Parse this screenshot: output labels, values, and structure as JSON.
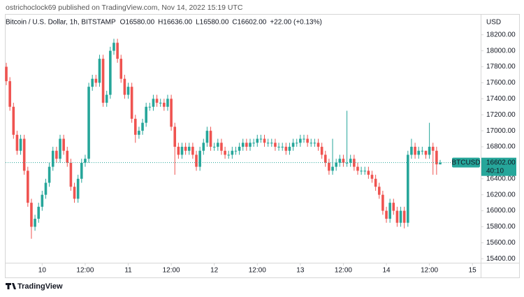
{
  "header": {
    "byline": "ostrichoclock69 published on TradingView.com, Nov 14, 2022 15:19 UTC",
    "brand": "TradingView"
  },
  "chart_data": {
    "type": "candlestick",
    "title": "Bitcoin / U.S. Dollar, 1h, BITSTAMP",
    "ohlc_legend": [
      {
        "label": "O",
        "value": "16580.00"
      },
      {
        "label": "H",
        "value": "16636.00"
      },
      {
        "label": "L",
        "value": "16580.00"
      },
      {
        "label": "C",
        "value": "16602.00"
      }
    ],
    "change": "+22.00 (+0.13%)",
    "currency": "USD",
    "symbol_tag": "BTCUSD",
    "price_label": "16602.00",
    "countdown": "40:10",
    "up_color": "#26a69a",
    "down_color": "#ef5350",
    "xlim": [
      -10.2,
      122.3
    ],
    "ylim": [
      15350,
      18460
    ],
    "xticks": [
      {
        "value": 0,
        "label": "10"
      },
      {
        "value": 12,
        "label": "12:00"
      },
      {
        "value": 24,
        "label": "11"
      },
      {
        "value": 36,
        "label": "12:00"
      },
      {
        "value": 48,
        "label": "12"
      },
      {
        "value": 60,
        "label": "12:00"
      },
      {
        "value": 72,
        "label": "13"
      },
      {
        "value": 84,
        "label": "12:00"
      },
      {
        "value": 96,
        "label": "14"
      },
      {
        "value": 108,
        "label": "12:00"
      },
      {
        "value": 120,
        "label": "15"
      }
    ],
    "yticks": [
      {
        "value": 18200,
        "label": "18200.00"
      },
      {
        "value": 18000,
        "label": "18000.00"
      },
      {
        "value": 17800,
        "label": "17800.00"
      },
      {
        "value": 17600,
        "label": "17600.00"
      },
      {
        "value": 17400,
        "label": "17400.00"
      },
      {
        "value": 17200,
        "label": "17200.00"
      },
      {
        "value": 17000,
        "label": "17000.00"
      },
      {
        "value": 16800,
        "label": "16800.00"
      },
      {
        "value": 16600,
        "label": "16600.00"
      },
      {
        "value": 16400,
        "label": "16400.00"
      },
      {
        "value": 16200,
        "label": "16200.00"
      },
      {
        "value": 16000,
        "label": "16000.00"
      },
      {
        "value": 15800,
        "label": "15800.00"
      },
      {
        "value": 15600,
        "label": "15600.00"
      },
      {
        "value": 15400,
        "label": "15400.00"
      }
    ],
    "x": [
      -10,
      -9,
      -8,
      -7,
      -6,
      -5,
      -4,
      -3,
      -2,
      -1,
      0,
      1,
      2,
      3,
      4,
      5,
      6,
      7,
      8,
      9,
      10,
      11,
      12,
      13,
      14,
      15,
      16,
      17,
      18,
      19,
      20,
      21,
      22,
      23,
      24,
      25,
      26,
      27,
      28,
      29,
      30,
      31,
      32,
      33,
      34,
      35,
      36,
      37,
      38,
      39,
      40,
      41,
      42,
      43,
      44,
      45,
      46,
      47,
      48,
      49,
      50,
      51,
      52,
      53,
      54,
      55,
      56,
      57,
      58,
      59,
      60,
      61,
      62,
      63,
      64,
      65,
      66,
      67,
      68,
      69,
      70,
      71,
      72,
      73,
      74,
      75,
      76,
      77,
      78,
      79,
      80,
      81,
      82,
      83,
      84,
      85,
      86,
      87,
      88,
      89,
      90,
      91,
      92,
      93,
      94,
      95,
      96,
      97,
      98,
      99,
      100,
      101,
      102,
      103,
      104,
      105,
      106,
      107,
      108,
      109,
      110,
      111
    ],
    "open": [
      17800,
      17620,
      17300,
      16950,
      16750,
      16900,
      16500,
      16100,
      15800,
      15900,
      16050,
      16200,
      16350,
      16550,
      16750,
      16650,
      16900,
      16750,
      16600,
      16300,
      16150,
      16400,
      16600,
      16650,
      17550,
      17650,
      17600,
      17900,
      17350,
      17450,
      18000,
      18100,
      17900,
      17650,
      17450,
      17550,
      17150,
      16950,
      17000,
      17100,
      17300,
      17300,
      17400,
      17350,
      17350,
      17300,
      17400,
      17050,
      16800,
      16700,
      16800,
      16750,
      16800,
      16700,
      16550,
      16750,
      16850,
      17000,
      16800,
      16800,
      16850,
      16750,
      16700,
      16700,
      16750,
      16750,
      16800,
      16850,
      16800,
      16850,
      16850,
      16900,
      16900,
      16850,
      16850,
      16850,
      16800,
      16800,
      16800,
      16750,
      16800,
      16850,
      16850,
      16900,
      16900,
      16850,
      16850,
      16850,
      16800,
      16700,
      16600,
      16500,
      16550,
      16600,
      16650,
      16600,
      16600,
      16650,
      16550,
      16500,
      16500,
      16500,
      16450,
      16400,
      16300,
      16200,
      16000,
      15900,
      16100,
      16000,
      15850,
      16000,
      15850,
      16700,
      16800,
      16700,
      16750,
      16750,
      16700,
      16800,
      16750,
      16580
    ],
    "high": [
      17850,
      17670,
      17350,
      17000,
      16950,
      16950,
      16550,
      16150,
      15950,
      16100,
      16250,
      16400,
      16600,
      16800,
      16800,
      16950,
      16950,
      16800,
      16650,
      16350,
      16450,
      16650,
      16700,
      17600,
      17700,
      17700,
      17950,
      17950,
      17500,
      18050,
      18150,
      18150,
      17950,
      17700,
      17600,
      17600,
      17200,
      17050,
      17150,
      17350,
      17350,
      17450,
      17450,
      17400,
      17400,
      17450,
      17450,
      17100,
      16850,
      16850,
      16850,
      16850,
      16850,
      16750,
      16800,
      16900,
      17050,
      17050,
      16850,
      16900,
      16900,
      16800,
      16750,
      16800,
      16800,
      16850,
      16900,
      16900,
      16900,
      16900,
      16950,
      16950,
      16950,
      16900,
      16900,
      16900,
      16850,
      16850,
      16850,
      16850,
      16900,
      16900,
      16950,
      16950,
      16950,
      16900,
      16900,
      16900,
      16850,
      16750,
      16650,
      16900,
      16650,
      16700,
      16700,
      17250,
      16700,
      16700,
      16600,
      16550,
      16550,
      16550,
      16500,
      16450,
      16350,
      16250,
      16050,
      16150,
      16150,
      16050,
      16050,
      16050,
      16750,
      16900,
      16850,
      16800,
      16800,
      16750,
      17100,
      16850,
      16800,
      16636
    ],
    "low": [
      17570,
      17250,
      16900,
      16700,
      16700,
      16450,
      16050,
      15650,
      15750,
      15850,
      16000,
      16150,
      16300,
      16500,
      16600,
      16600,
      16700,
      16550,
      16250,
      16100,
      16100,
      16350,
      16550,
      16600,
      17500,
      17550,
      17550,
      17300,
      17300,
      17400,
      17950,
      17850,
      17600,
      17400,
      17400,
      17100,
      16850,
      16900,
      16950,
      17050,
      17250,
      17250,
      17300,
      17300,
      17250,
      17250,
      17000,
      16450,
      16650,
      16650,
      16700,
      16700,
      16650,
      16500,
      16500,
      16700,
      16800,
      16750,
      16750,
      16750,
      16700,
      16650,
      16650,
      16650,
      16700,
      16700,
      16750,
      16750,
      16750,
      16800,
      16800,
      16850,
      16800,
      16800,
      16800,
      16750,
      16750,
      16750,
      16700,
      16700,
      16750,
      16800,
      16800,
      16850,
      16800,
      16800,
      16800,
      16750,
      16650,
      16550,
      16450,
      16450,
      16500,
      16550,
      16550,
      16550,
      16550,
      16500,
      16450,
      16450,
      16450,
      16400,
      16350,
      16250,
      16150,
      15950,
      15850,
      15850,
      15950,
      15800,
      15800,
      15780,
      15800,
      16650,
      16650,
      16650,
      16700,
      16650,
      16650,
      16450,
      16450,
      16580
    ],
    "close": [
      17620,
      17300,
      16950,
      16750,
      16900,
      16500,
      16100,
      15800,
      15900,
      16050,
      16200,
      16350,
      16550,
      16750,
      16650,
      16900,
      16750,
      16600,
      16300,
      16150,
      16400,
      16600,
      16650,
      17550,
      17650,
      17600,
      17900,
      17350,
      17450,
      18000,
      18100,
      17900,
      17650,
      17450,
      17550,
      17150,
      16950,
      17000,
      17100,
      17300,
      17300,
      17400,
      17350,
      17350,
      17300,
      17400,
      17050,
      16800,
      16700,
      16800,
      16750,
      16800,
      16700,
      16550,
      16750,
      16850,
      17000,
      16800,
      16800,
      16850,
      16750,
      16700,
      16700,
      16750,
      16750,
      16800,
      16850,
      16800,
      16850,
      16850,
      16900,
      16900,
      16850,
      16850,
      16850,
      16800,
      16800,
      16800,
      16750,
      16800,
      16850,
      16850,
      16900,
      16900,
      16850,
      16850,
      16850,
      16800,
      16700,
      16600,
      16500,
      16550,
      16600,
      16650,
      16600,
      16600,
      16650,
      16550,
      16500,
      16500,
      16500,
      16450,
      16400,
      16300,
      16200,
      16000,
      15900,
      16100,
      16000,
      15850,
      16000,
      15850,
      16700,
      16800,
      16700,
      16750,
      16750,
      16700,
      16800,
      16750,
      16580,
      16602
    ]
  }
}
